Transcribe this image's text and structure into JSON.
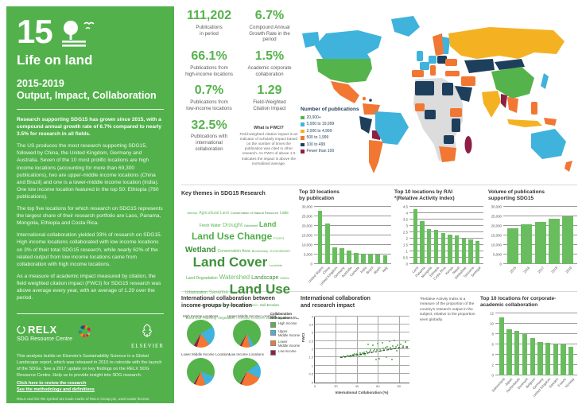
{
  "palette": {
    "green": "#55B34C",
    "bar_green": "#69BD5F",
    "light_blue": "#3FB3DC",
    "yellow": "#F4B223",
    "orange": "#F17732",
    "navy": "#1E3F5C",
    "maroon": "#8E1F42",
    "no_data_grey": "#DCDCDC",
    "sidebar_green": "#52B14B"
  },
  "sidebar": {
    "goal_number": "15",
    "goal_title": "Life on land",
    "period": "2015-2019",
    "subtitle": "Output, Impact, Collaboration",
    "intro_bold": "Research supporting SDG15 has grown since 2015, with a compound annual growth rate of 6.7% compared to nearly 3.5% for research in all fields.",
    "paragraphs": [
      "The US produces the most research supporting SDG15, followed by China, the United Kingdom, Germany and Australia. Seven of the 10 most prolific locations are high income locations (accounting for more than 69,300 publications), two are upper-middle income locations (China and Brazil) and one is a lower-middle income location (India). One low income location featured in the top 50: Ethiopia (780 publications).",
      "The top five locations for which research on SDG15 represents the largest share of their research portfolio are Laos, Panama, Mongolia, Ethiopia and Costa Rica.",
      "International collaboration yielded 33% of research on SDG15. High income locations collaborated with low income locations on 3% of their total SDG15 research, while nearly 62% of the related output from low income locations came from collaboration with high income locations.",
      "As a measure of academic impact measured by citation, the field weighted citation impact (FWCI) for SDG15 research was above average every year, with an average of 1.29 over the period."
    ],
    "relx_name": "RELX",
    "relx_sub": "SDG Resource Centre",
    "elsevier_name": "ELSEVIER",
    "about": "This analysis builds on Elsevier's Sustainability Science in a Global Landscape report, which was released in 2015 to coincide with the launch of the SDGs. See a 2017 update on key findings on the RELX SDG Resource Centre. Help us to provide insight into SDG research.",
    "link_review": "Click here to review the research",
    "link_methodology": "See the methodology and definitions",
    "legal": "RELX and the RE symbol are trade marks of RELX Group plc, used under license. Elsevier is a registered trade mark of Elsevier B.V. © 2020 RELX. Scopus®"
  },
  "stats": [
    {
      "value": "111,202",
      "label": "Publications\nin period"
    },
    {
      "value": "6.7%",
      "label": "Compound Annual\nGrowth Rate in the period"
    },
    {
      "value": "66.1%",
      "label": "Publications from\nhigh-income locations"
    },
    {
      "value": "1.5%",
      "label": "Academic corporate\ncollaboration"
    },
    {
      "value": "0.7%",
      "label": "Publications from\nlow-income locations"
    },
    {
      "value": "1.29",
      "label": "Field-Weighted\nCitation Impact"
    },
    {
      "value": "32.5%",
      "label": "Publications with\ninternational\ncollaboration"
    }
  ],
  "fwci_note": {
    "title": "What is FWCI?",
    "body": "Field-weighted citation impact is an indicator of scholarly impact based on the number of times the publication was cited in other research. An FWCI of above 1.0 indicates the impact is above the normalised average."
  },
  "map": {
    "legend_title": "Number of\npublications",
    "legend": [
      {
        "label": "20,000+",
        "color": "#55B34C"
      },
      {
        "label": "5,000 to 19,999",
        "color": "#3FB3DC"
      },
      {
        "label": "2,000 to 4,999",
        "color": "#F4B223"
      },
      {
        "label": "500 to 1,999",
        "color": "#F17732"
      },
      {
        "label": "100 to 499",
        "color": "#1E3F5C"
      },
      {
        "label": "Fewer than 100",
        "color": "#8E1F42"
      }
    ]
  },
  "wordcloud": {
    "title": "Key themes in SDG15 Research",
    "terms": [
      {
        "t": "Valencia",
        "s": 3.5
      },
      {
        "t": "Agricultural Land",
        "s": 5
      },
      {
        "t": "Conservation of Natural Resource",
        "s": 4
      },
      {
        "t": "Lake",
        "s": 5
      },
      {
        "t": "Fresh Water",
        "s": 5
      },
      {
        "t": "Drought",
        "s": 7
      },
      {
        "t": "Catchment",
        "s": 3.5
      },
      {
        "t": "Land",
        "s": 9
      },
      {
        "t": "Land Use Change",
        "s": 12
      },
      {
        "t": "Forest",
        "s": 4.5
      },
      {
        "t": "Wetland",
        "s": 10
      },
      {
        "t": "Conservation Area",
        "s": 5
      },
      {
        "t": "Biodiversity",
        "s": 4
      },
      {
        "t": "Groundwater",
        "s": 4.5
      },
      {
        "t": "Land Cover",
        "s": 17
      },
      {
        "t": "Landslide",
        "s": 4
      },
      {
        "t": "Land Degradation",
        "s": 5
      },
      {
        "t": "Watershed",
        "s": 8
      },
      {
        "t": "Landscape",
        "s": 7
      },
      {
        "t": "Wildfire",
        "s": 3.5
      },
      {
        "t": "Urbanization",
        "s": 5
      },
      {
        "t": "Savanna",
        "s": 6
      },
      {
        "t": "Land Use",
        "s": 17
      },
      {
        "t": "Runoff",
        "s": 3.5
      },
      {
        "t": "Soil Organic Carbon",
        "s": 4.5
      },
      {
        "t": "River Basin",
        "s": 4.5
      },
      {
        "t": "Soil Erosion",
        "s": 4.5
      },
      {
        "t": "Land Use Planning",
        "s": 4.5
      },
      {
        "t": "Vegetation",
        "s": 4.5
      },
      {
        "t": "Freshwater Ecosystem",
        "s": 3.5
      },
      {
        "t": "Land Management",
        "s": 3.5
      }
    ]
  },
  "chart_data": [
    {
      "id": "pub",
      "type": "bar",
      "title": "Top 10 locations\nby publication",
      "categories": [
        "United States",
        "China",
        "United Kingdom",
        "Germany",
        "Australia",
        "Canada",
        "India",
        "Brazil",
        "Spain",
        "Italy"
      ],
      "values": [
        28000,
        21500,
        8700,
        8500,
        7000,
        6100,
        5600,
        5300,
        5100,
        4900
      ],
      "ylim": [
        0,
        30000
      ],
      "ystep": 5000,
      "xlabel": "",
      "ylabel": ""
    },
    {
      "id": "rai",
      "type": "bar",
      "title": "Top 10 locations by RAI\n*(Relative Activity Index)",
      "categories": [
        "Laos",
        "Panama",
        "Mongolia",
        "Ethiopia",
        "Costa Rica",
        "Kenya",
        "Nepal",
        "Zimbabwe",
        "Tanzania",
        "Senegal"
      ],
      "values": [
        4.3,
        3.4,
        2.75,
        2.7,
        2.45,
        2.3,
        2.25,
        2.0,
        1.95,
        1.85
      ],
      "ylim": [
        0,
        4.5
      ],
      "ystep": 0.5,
      "xlabel": "",
      "ylabel": ""
    },
    {
      "id": "vol",
      "type": "bar",
      "title": "Volume of publications\nsupporting SDG15",
      "categories": [
        "2015",
        "2016",
        "2017",
        "2018",
        "2019"
      ],
      "values": [
        19000,
        21000,
        22200,
        24000,
        25000
      ],
      "ylim": [
        0,
        30000
      ],
      "ystep": 5000,
      "xlabel": "",
      "ylabel": ""
    },
    {
      "id": "income-pies",
      "type": "pie",
      "title": "International collaboration between\nincome groups by location",
      "legend_title": "Collaboration\nwith locations in...",
      "legend": [
        {
          "label": "High Income",
          "color": "#55B34C"
        },
        {
          "label": "Upper\nMiddle Income",
          "color": "#3FB3DC"
        },
        {
          "label": "Lower\nMiddle Income",
          "color": "#F17732"
        },
        {
          "label": "Low Income",
          "color": "#8E1F42"
        }
      ],
      "pies": [
        {
          "label": "High Income Locations",
          "values": [
            58,
            23,
            15,
            4
          ]
        },
        {
          "label": "Upper Middle Income Locations",
          "values": [
            83,
            5,
            10,
            2
          ]
        },
        {
          "label": "Lower Middle Income Locations",
          "values": [
            72,
            14,
            12,
            2
          ]
        },
        {
          "label": "Low Income Locations",
          "values": [
            57,
            17,
            24,
            2
          ]
        }
      ]
    },
    {
      "id": "collab-impact",
      "type": "scatter",
      "title": "International collaboration\nand research impact",
      "xlabel": "International Collaboration (%)",
      "ylabel": "FWCI",
      "xlim": [
        0,
        90
      ],
      "ylim": [
        0,
        4
      ],
      "xticks": [
        0,
        20,
        40,
        60,
        80
      ],
      "yticks": [
        0,
        0.5,
        1,
        1.5,
        2,
        2.5,
        3,
        3.5,
        4
      ],
      "trend": {
        "x1": 24,
        "y1": 1.52,
        "x2": 88,
        "y2": 2.18
      },
      "points": [
        [
          25,
          1.5
        ],
        [
          27,
          1.56
        ],
        [
          29,
          1.5
        ],
        [
          31,
          1.6
        ],
        [
          33,
          1.55
        ],
        [
          34,
          1.63
        ],
        [
          35,
          1.58
        ],
        [
          36,
          1.66
        ],
        [
          37,
          1.6
        ],
        [
          38,
          1.7
        ],
        [
          39,
          1.64
        ],
        [
          40,
          1.72
        ],
        [
          41,
          1.66
        ],
        [
          42,
          1.58
        ],
        [
          43,
          1.75
        ],
        [
          44,
          1.68
        ],
        [
          45,
          1.78
        ],
        [
          46,
          1.72
        ],
        [
          47,
          1.82
        ],
        [
          48,
          1.68
        ],
        [
          49,
          1.88
        ],
        [
          50,
          1.78
        ],
        [
          51,
          2.28
        ],
        [
          52,
          1.84
        ],
        [
          53,
          1.94
        ],
        [
          54,
          1.8
        ],
        [
          55,
          2.22
        ],
        [
          56,
          1.9
        ],
        [
          57,
          1.98
        ],
        [
          58,
          1.36
        ],
        [
          59,
          1.94
        ],
        [
          60,
          2.32
        ],
        [
          61,
          1.42
        ],
        [
          62,
          2.0
        ],
        [
          63,
          1.9
        ],
        [
          64,
          2.38
        ],
        [
          65,
          2.04
        ],
        [
          66,
          1.96
        ],
        [
          67,
          2.1
        ],
        [
          68,
          1.5
        ],
        [
          69,
          2.14
        ],
        [
          70,
          2.02
        ],
        [
          71,
          2.46
        ],
        [
          72,
          2.1
        ],
        [
          73,
          1.38
        ],
        [
          74,
          2.18
        ],
        [
          75,
          2.06
        ],
        [
          76,
          2.55
        ],
        [
          77,
          2.16
        ],
        [
          78,
          1.92
        ],
        [
          79,
          2.24
        ],
        [
          80,
          2.1
        ],
        [
          82,
          2.3
        ],
        [
          84,
          2.2
        ],
        [
          86,
          2.42
        ],
        [
          88,
          2.12
        ]
      ]
    },
    {
      "id": "corp",
      "type": "bar",
      "title": "Top 10 locations for corporate-\nacademic collaboration",
      "categories": [
        "Switzerland",
        "Japan",
        "Netherlands",
        "Denmark",
        "Belgium",
        "Germany",
        "United Kingdom",
        "Sweden",
        "France",
        "Norway"
      ],
      "values": [
        11.3,
        9.0,
        8.6,
        8.0,
        7.3,
        6.5,
        6.3,
        6.1,
        6.0,
        5.6
      ],
      "ylim": [
        0,
        12
      ],
      "ystep": 2,
      "xlabel": "",
      "ylabel": ""
    }
  ],
  "rai_note": "*Relative Activity Index is a measure of the proportion of the country's research output in the subject, relative to the proportion seen globally."
}
